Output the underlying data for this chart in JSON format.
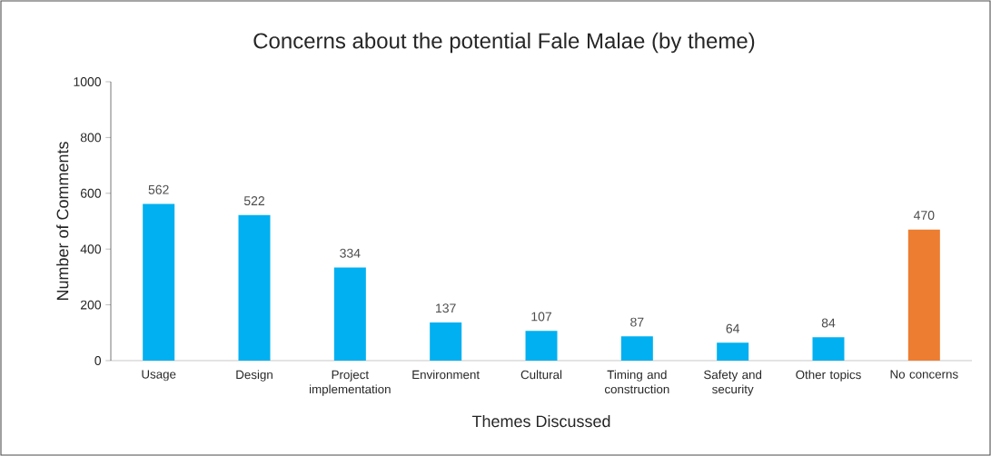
{
  "chart_data": {
    "type": "bar",
    "title": "Concerns about the potential Fale Malae (by theme)",
    "xlabel": "Themes Discussed",
    "ylabel": "Number of Comments",
    "categories": [
      "Usage",
      "Design",
      "Project implementation",
      "Environment",
      "Cultural",
      "Timing and construction",
      "Safety and security",
      "Other topics",
      "No concerns"
    ],
    "values": [
      562,
      522,
      334,
      137,
      107,
      87,
      64,
      84,
      470
    ],
    "colors": [
      "#00b0f0",
      "#00b0f0",
      "#00b0f0",
      "#00b0f0",
      "#00b0f0",
      "#00b0f0",
      "#00b0f0",
      "#00b0f0",
      "#ed7d31"
    ],
    "ylim": [
      0,
      1000
    ],
    "yticks": [
      0,
      200,
      400,
      600,
      800,
      1000
    ],
    "data_labels": true
  }
}
